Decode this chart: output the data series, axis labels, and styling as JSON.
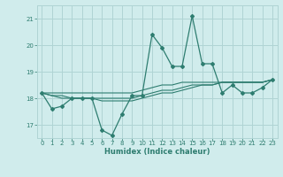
{
  "x": [
    0,
    1,
    2,
    3,
    4,
    5,
    6,
    7,
    8,
    9,
    10,
    11,
    12,
    13,
    14,
    15,
    16,
    17,
    18,
    19,
    20,
    21,
    22,
    23
  ],
  "humidex": [
    18.2,
    17.6,
    17.7,
    18.0,
    18.0,
    18.0,
    16.8,
    16.6,
    17.4,
    18.1,
    18.1,
    20.4,
    19.9,
    19.2,
    19.2,
    21.1,
    19.3,
    19.3,
    18.2,
    18.5,
    18.2,
    18.2,
    18.4,
    18.7
  ],
  "line2": [
    18.2,
    18.2,
    18.2,
    18.2,
    18.2,
    18.2,
    18.2,
    18.2,
    18.2,
    18.2,
    18.3,
    18.4,
    18.5,
    18.5,
    18.6,
    18.6,
    18.6,
    18.6,
    18.6,
    18.6,
    18.6,
    18.6,
    18.6,
    18.7
  ],
  "line3": [
    18.2,
    18.1,
    18.1,
    18.0,
    18.0,
    18.0,
    17.9,
    17.9,
    17.9,
    17.9,
    18.0,
    18.1,
    18.2,
    18.2,
    18.3,
    18.4,
    18.5,
    18.5,
    18.6,
    18.6,
    18.6,
    18.6,
    18.6,
    18.7
  ],
  "line4": [
    18.2,
    18.1,
    18.0,
    18.0,
    18.0,
    18.0,
    18.0,
    18.0,
    18.0,
    18.0,
    18.1,
    18.2,
    18.3,
    18.3,
    18.4,
    18.5,
    18.5,
    18.5,
    18.6,
    18.6,
    18.6,
    18.6,
    18.6,
    18.7
  ],
  "color": "#2e7d70",
  "bg_color": "#d0ecec",
  "grid_color": "#b0d4d4",
  "xlabel": "Humidex (Indice chaleur)",
  "ylim": [
    16.5,
    21.5
  ],
  "yticks": [
    17,
    18,
    19,
    20,
    21
  ],
  "xlim": [
    -0.5,
    23.5
  ]
}
